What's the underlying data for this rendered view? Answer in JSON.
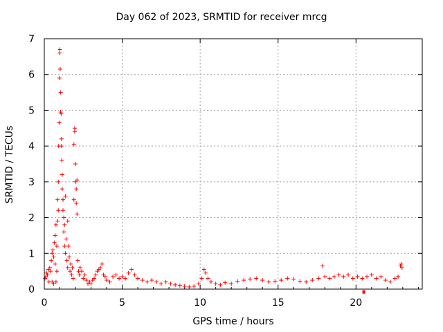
{
  "chart_data": {
    "type": "scatter",
    "title": "Day 062 of 2023, SRMTID for receiver mrcg",
    "xlabel": "GPS time / hours",
    "ylabel": "SRMTID / TECUs",
    "xlim": [
      0,
      24.25
    ],
    "ylim": [
      0,
      7
    ],
    "xticks": [
      0,
      5,
      10,
      15,
      20
    ],
    "yticks": [
      0,
      1,
      2,
      3,
      4,
      5,
      6,
      7
    ],
    "grid": true,
    "marker": "+",
    "color": "#ff0000",
    "series": [
      {
        "name": "SRMTID",
        "points": [
          [
            0.05,
            0.3
          ],
          [
            0.1,
            0.35
          ],
          [
            0.15,
            0.45
          ],
          [
            0.2,
            0.4
          ],
          [
            0.25,
            0.55
          ],
          [
            0.3,
            0.2
          ],
          [
            0.35,
            0.6
          ],
          [
            0.4,
            0.5
          ],
          [
            0.45,
            0.8
          ],
          [
            0.5,
            1.0
          ],
          [
            0.5,
            0.2
          ],
          [
            0.55,
            1.1
          ],
          [
            0.6,
            0.9
          ],
          [
            0.6,
            0.15
          ],
          [
            0.65,
            1.3
          ],
          [
            0.7,
            0.7
          ],
          [
            0.7,
            1.5
          ],
          [
            0.75,
            1.8
          ],
          [
            0.75,
            0.2
          ],
          [
            0.8,
            1.2
          ],
          [
            0.8,
            0.5
          ],
          [
            0.85,
            1.9
          ],
          [
            0.85,
            2.5
          ],
          [
            0.9,
            2.2
          ],
          [
            0.9,
            3.0
          ],
          [
            0.92,
            4.0
          ],
          [
            0.95,
            4.65
          ],
          [
            0.97,
            5.9
          ],
          [
            1.0,
            6.7
          ],
          [
            1.0,
            6.6
          ],
          [
            1.02,
            6.15
          ],
          [
            1.05,
            5.5
          ],
          [
            1.05,
            4.95
          ],
          [
            1.08,
            4.9
          ],
          [
            1.1,
            4.0
          ],
          [
            1.1,
            4.2
          ],
          [
            1.12,
            3.6
          ],
          [
            1.15,
            3.2
          ],
          [
            1.15,
            2.8
          ],
          [
            1.2,
            2.5
          ],
          [
            1.2,
            2.2
          ],
          [
            1.25,
            2.0
          ],
          [
            1.25,
            1.6
          ],
          [
            1.3,
            1.8
          ],
          [
            1.3,
            1.2
          ],
          [
            1.35,
            1.0
          ],
          [
            1.35,
            2.6
          ],
          [
            1.4,
            1.4
          ],
          [
            1.45,
            0.8
          ],
          [
            1.5,
            1.9
          ],
          [
            1.5,
            0.6
          ],
          [
            1.55,
            1.2
          ],
          [
            1.6,
            0.9
          ],
          [
            1.65,
            0.5
          ],
          [
            1.7,
            0.7
          ],
          [
            1.75,
            0.4
          ],
          [
            1.8,
            0.6
          ],
          [
            1.85,
            0.3
          ],
          [
            1.9,
            2.5
          ],
          [
            1.9,
            4.05
          ],
          [
            1.95,
            4.5
          ],
          [
            1.95,
            4.4
          ],
          [
            2.0,
            3.5
          ],
          [
            2.0,
            3.0
          ],
          [
            2.05,
            2.8
          ],
          [
            2.05,
            2.4
          ],
          [
            2.1,
            2.1
          ],
          [
            2.1,
            3.05
          ],
          [
            2.15,
            0.8
          ],
          [
            2.2,
            0.5
          ],
          [
            2.25,
            0.4
          ],
          [
            2.3,
            0.6
          ],
          [
            2.4,
            0.5
          ],
          [
            2.5,
            0.3
          ],
          [
            2.6,
            0.4
          ],
          [
            2.7,
            0.25
          ],
          [
            2.8,
            0.15
          ],
          [
            2.9,
            0.2
          ],
          [
            3.0,
            0.15
          ],
          [
            3.1,
            0.25
          ],
          [
            3.2,
            0.3
          ],
          [
            3.3,
            0.4
          ],
          [
            3.4,
            0.5
          ],
          [
            3.5,
            0.55
          ],
          [
            3.6,
            0.6
          ],
          [
            3.7,
            0.7
          ],
          [
            3.8,
            0.4
          ],
          [
            3.9,
            0.35
          ],
          [
            4.0,
            0.25
          ],
          [
            4.2,
            0.2
          ],
          [
            4.4,
            0.35
          ],
          [
            4.6,
            0.4
          ],
          [
            4.8,
            0.3
          ],
          [
            5.0,
            0.35
          ],
          [
            5.2,
            0.3
          ],
          [
            5.4,
            0.45
          ],
          [
            5.6,
            0.55
          ],
          [
            5.8,
            0.4
          ],
          [
            6.0,
            0.3
          ],
          [
            6.3,
            0.25
          ],
          [
            6.6,
            0.2
          ],
          [
            6.9,
            0.25
          ],
          [
            7.2,
            0.2
          ],
          [
            7.5,
            0.15
          ],
          [
            7.8,
            0.2
          ],
          [
            8.1,
            0.15
          ],
          [
            8.4,
            0.12
          ],
          [
            8.7,
            0.1
          ],
          [
            9.0,
            0.08
          ],
          [
            9.3,
            0.06
          ],
          [
            9.6,
            0.08
          ],
          [
            9.9,
            0.15
          ],
          [
            10.1,
            0.3
          ],
          [
            10.25,
            0.55
          ],
          [
            10.35,
            0.45
          ],
          [
            10.5,
            0.3
          ],
          [
            10.7,
            0.2
          ],
          [
            11.0,
            0.15
          ],
          [
            11.3,
            0.12
          ],
          [
            11.6,
            0.18
          ],
          [
            12.0,
            0.15
          ],
          [
            12.4,
            0.22
          ],
          [
            12.8,
            0.25
          ],
          [
            13.2,
            0.28
          ],
          [
            13.6,
            0.3
          ],
          [
            14.0,
            0.25
          ],
          [
            14.4,
            0.2
          ],
          [
            14.8,
            0.22
          ],
          [
            15.2,
            0.25
          ],
          [
            15.6,
            0.3
          ],
          [
            16.0,
            0.28
          ],
          [
            16.4,
            0.22
          ],
          [
            16.8,
            0.2
          ],
          [
            17.2,
            0.25
          ],
          [
            17.6,
            0.3
          ],
          [
            17.85,
            0.65
          ],
          [
            18.0,
            0.35
          ],
          [
            18.3,
            0.3
          ],
          [
            18.6,
            0.35
          ],
          [
            18.9,
            0.4
          ],
          [
            19.2,
            0.35
          ],
          [
            19.5,
            0.4
          ],
          [
            19.8,
            0.3
          ],
          [
            20.1,
            0.35
          ],
          [
            20.4,
            0.3
          ],
          [
            20.7,
            0.35
          ],
          [
            21.0,
            0.4
          ],
          [
            21.3,
            0.3
          ],
          [
            21.6,
            0.35
          ],
          [
            21.9,
            0.25
          ],
          [
            22.2,
            0.2
          ],
          [
            22.5,
            0.3
          ],
          [
            22.7,
            0.35
          ],
          [
            22.85,
            0.65
          ],
          [
            22.9,
            0.7
          ],
          [
            22.95,
            0.6
          ]
        ]
      }
    ],
    "outlier": {
      "x": 20.5,
      "y": -0.05
    }
  }
}
